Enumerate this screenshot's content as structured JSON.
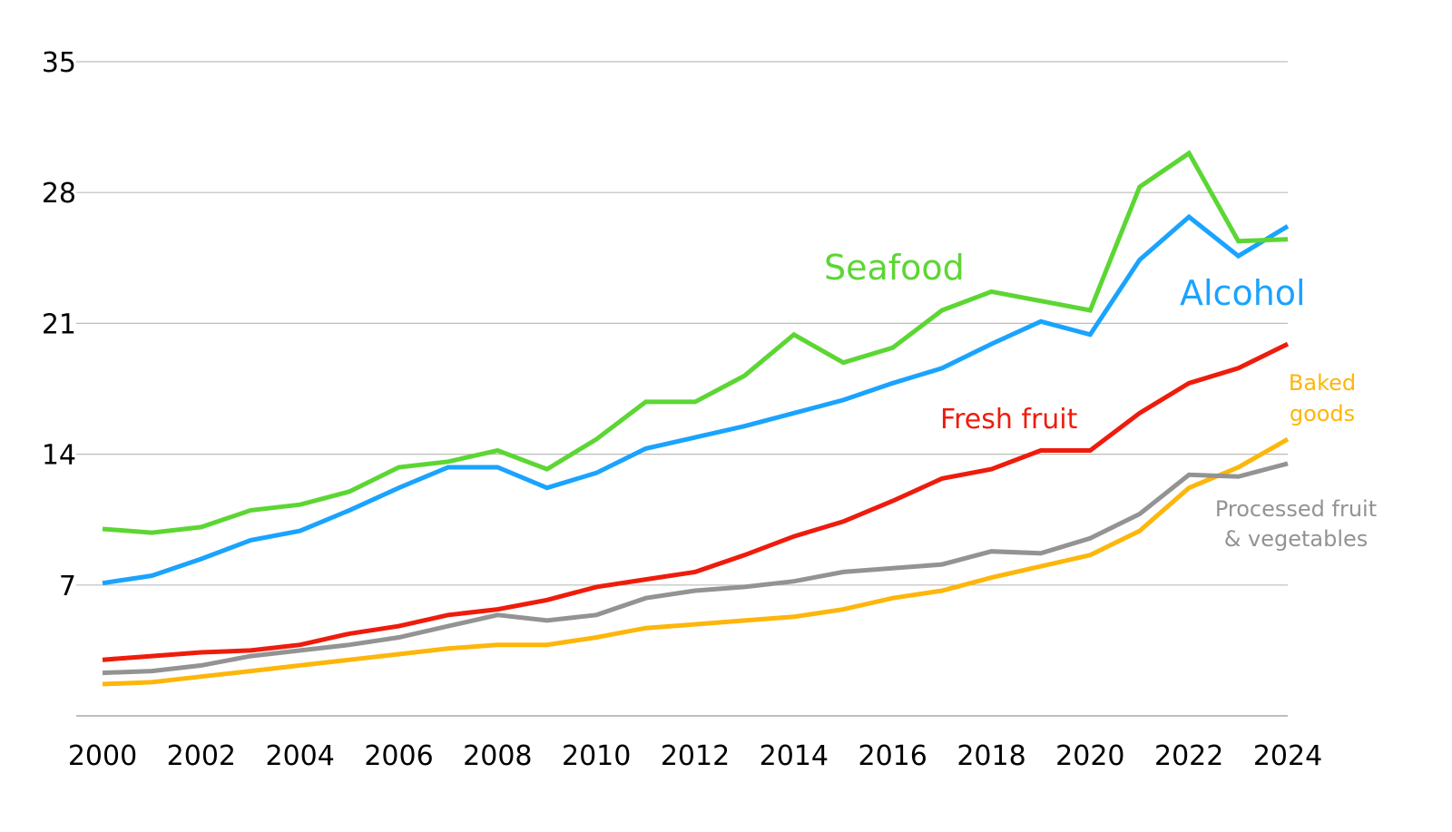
{
  "chart_data": {
    "type": "line",
    "title": "",
    "xlabel": "",
    "ylabel": "",
    "x": [
      2000,
      2001,
      2002,
      2003,
      2004,
      2005,
      2006,
      2007,
      2008,
      2009,
      2010,
      2011,
      2012,
      2013,
      2014,
      2015,
      2016,
      2017,
      2018,
      2019,
      2020,
      2021,
      2022,
      2023,
      2024
    ],
    "xticks": [
      "2000",
      "2002",
      "2004",
      "2006",
      "2008",
      "2010",
      "2012",
      "2014",
      "2016",
      "2018",
      "2020",
      "2022",
      "2024"
    ],
    "yticks": [
      "7",
      "14",
      "21",
      "28",
      "35"
    ],
    "ylim": [
      0,
      35
    ],
    "xlim": [
      2000,
      2024
    ],
    "grid": true,
    "legend": "inline labels",
    "series": [
      {
        "name": "Seafood",
        "label": "Seafood",
        "color": "#5cd633",
        "values": [
          10.0,
          9.8,
          10.1,
          11.0,
          11.3,
          12.0,
          13.3,
          13.6,
          14.2,
          13.2,
          14.8,
          16.8,
          16.8,
          18.2,
          20.4,
          18.9,
          19.7,
          21.7,
          22.7,
          22.2,
          21.7,
          28.3,
          30.1,
          25.4,
          25.5
        ]
      },
      {
        "name": "Alcohol",
        "label": "Alcohol",
        "color": "#1aa3ff",
        "values": [
          7.1,
          7.5,
          8.4,
          9.4,
          9.9,
          11.0,
          12.2,
          13.3,
          13.3,
          12.2,
          13.0,
          14.3,
          14.9,
          15.5,
          16.2,
          16.9,
          17.8,
          18.6,
          19.9,
          21.1,
          20.4,
          24.4,
          26.7,
          24.6,
          26.2
        ]
      },
      {
        "name": "Fresh fruit",
        "label": "Fresh fruit",
        "color": "#ee1c0c",
        "values": [
          3.0,
          3.2,
          3.4,
          3.5,
          3.8,
          4.4,
          4.8,
          5.4,
          5.7,
          6.2,
          6.9,
          7.3,
          7.7,
          8.6,
          9.6,
          10.4,
          11.5,
          12.7,
          13.2,
          14.2,
          14.2,
          16.2,
          17.8,
          18.6,
          19.9
        ]
      },
      {
        "name": "Processed fruit & vegetables",
        "label": [
          "Processed fruit",
          "& vegetables"
        ],
        "color": "#939393",
        "values": [
          2.3,
          2.4,
          2.7,
          3.2,
          3.5,
          3.8,
          4.2,
          4.8,
          5.4,
          5.1,
          5.4,
          6.3,
          6.7,
          6.9,
          7.2,
          7.7,
          7.9,
          8.1,
          8.8,
          8.7,
          9.5,
          10.8,
          12.9,
          12.8,
          13.5
        ]
      },
      {
        "name": "Baked goods",
        "label": [
          "Baked",
          "goods"
        ],
        "color": "#fdb60a",
        "values": [
          1.7,
          1.8,
          2.1,
          2.4,
          2.7,
          3.0,
          3.3,
          3.6,
          3.8,
          3.8,
          4.2,
          4.7,
          4.9,
          5.1,
          5.3,
          5.7,
          6.3,
          6.7,
          7.4,
          8.0,
          8.6,
          9.9,
          12.2,
          13.3,
          14.8
        ]
      }
    ]
  }
}
